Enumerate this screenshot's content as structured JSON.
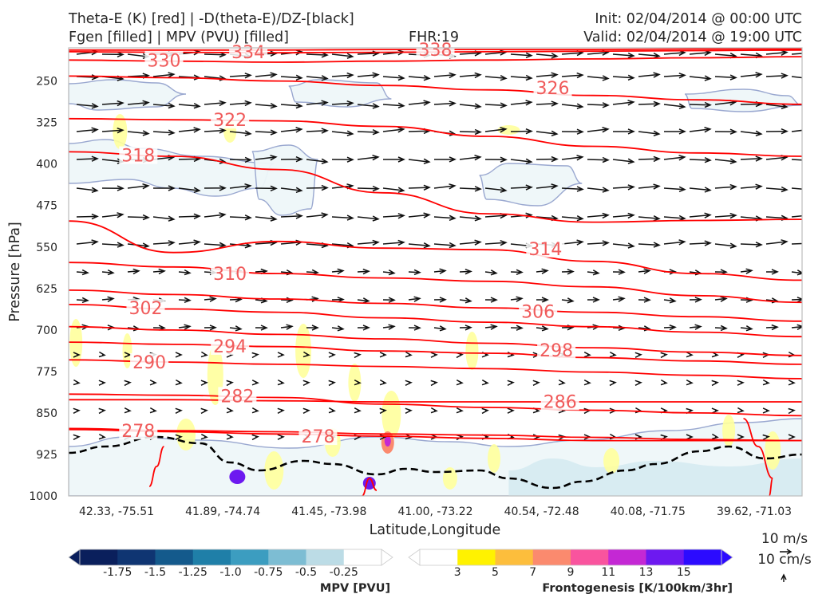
{
  "header": {
    "title_line1": "Theta-E (K) [red] | -D(theta-E)/DZ-[black]",
    "title_line2": "Fgen [filled] | MPV (PVU) [filled]",
    "fhr": "FHR:19",
    "init": "Init: 02/04/2014 @ 00:00 UTC",
    "valid": "Valid: 02/04/2014 @ 19:00 UTC"
  },
  "chart_data": {
    "type": "contour",
    "xlabel": "Latitude,Longitude",
    "ylabel": "Pressure [hPa]",
    "x_ticks": [
      "42.33, -75.51",
      "41.89, -74.74",
      "41.45, -73.98",
      "41.00, -73.22",
      "40.54, -72.48",
      "40.08, -71.75",
      "39.62, -71.03"
    ],
    "y_ticks": [
      250,
      325,
      400,
      475,
      550,
      625,
      700,
      775,
      850,
      925,
      1000
    ],
    "ylim": [
      1000,
      190
    ],
    "colors": {
      "theta_e": "#ff0000",
      "mpv_outline": "#9aa8d0",
      "wind_vectors": "#111111",
      "stability": "#000000"
    },
    "theta_e_contours": [
      {
        "label": "330",
        "p": [
          212,
          214,
          216,
          214,
          212,
          210,
          208,
          206
        ],
        "label_pos": [
          0.13,
          212
        ]
      },
      {
        "label": "334",
        "p": [
          197,
          198,
          199,
          198,
          197,
          196,
          195,
          194
        ],
        "label_pos": [
          0.245,
          197
        ]
      },
      {
        "label": "338",
        "p": [
          194,
          194,
          194,
          193,
          193,
          193,
          192,
          192
        ],
        "label_pos": [
          0.5,
          193
        ]
      },
      {
        "label": "326",
        "p": [
          241,
          244,
          250,
          258,
          266,
          276,
          284,
          292
        ],
        "label_pos": [
          0.66,
          262
        ]
      },
      {
        "label": "322",
        "p": [
          318,
          320,
          322,
          332,
          350,
          368,
          380,
          386
        ],
        "label_pos": [
          0.22,
          320
        ]
      },
      {
        "label": "318",
        "p": [
          378,
          386,
          410,
          452,
          490,
          505,
          502,
          500
        ],
        "label_pos": [
          0.095,
          384
        ]
      },
      {
        "label": "314",
        "p": [
          503,
          560,
          540,
          552,
          555,
          576,
          598,
          610
        ],
        "label_pos": [
          0.65,
          553
        ]
      },
      {
        "label": "310",
        "p": [
          578,
          586,
          598,
          606,
          612,
          622,
          638,
          650
        ],
        "label_pos": [
          0.22,
          598
        ]
      },
      {
        "label": "302",
        "p": [
          654,
          662,
          668,
          678,
          686,
          694,
          704,
          712
        ],
        "label_pos": [
          0.105,
          660
        ]
      },
      {
        "label": "306",
        "p": [
          628,
          636,
          644,
          652,
          660,
          668,
          676,
          684
        ],
        "label_pos": [
          0.64,
          666
        ]
      },
      {
        "label": "294",
        "p": [
          722,
          726,
          730,
          738,
          742,
          750,
          756,
          762
        ],
        "label_pos": [
          0.22,
          729
        ]
      },
      {
        "label": "298",
        "p": [
          694,
          700,
          708,
          716,
          724,
          732,
          740,
          746
        ],
        "label_pos": [
          0.665,
          736
        ]
      },
      {
        "label": "290",
        "p": [
          754,
          758,
          762,
          766,
          770,
          776,
          782,
          788
        ],
        "label_pos": [
          0.11,
          758
        ]
      },
      {
        "label": "286",
        "p": [
          826,
          826,
          828,
          830,
          830,
          830,
          830,
          830
        ],
        "label_pos": [
          0.67,
          829
        ]
      },
      {
        "label": "282",
        "p": [
          816,
          818,
          822,
          834,
          840,
          845,
          850,
          855
        ],
        "label_pos": [
          0.23,
          819
        ]
      },
      {
        "label": "278",
        "p": [
          880,
          884,
          888,
          892,
          896,
          900,
          900,
          900
        ],
        "label_pos": [
          0.34,
          892
        ]
      },
      {
        "label": "278",
        "p": [
          878,
          882,
          884,
          888,
          890,
          894,
          898,
          900
        ],
        "label_pos": [
          0.095,
          882
        ]
      }
    ],
    "mpv_colorbar": {
      "label": "MPV [PVU]",
      "ticks": [
        "-1.75",
        "-1.5",
        "-1.25",
        "-1.0",
        "-0.75",
        "-0.5",
        "-0.25"
      ],
      "colors": [
        "#0a1f5c",
        "#0f3572",
        "#145a8c",
        "#1f7fa8",
        "#3c9dc0",
        "#7dbdd3",
        "#bcdce6",
        "#ffffff"
      ]
    },
    "fgen_colorbar": {
      "label": "Frontogenesis [K/100km/3hr]",
      "ticks": [
        "3",
        "5",
        "7",
        "9",
        "11",
        "13",
        "15"
      ],
      "colors": [
        "#ffffff",
        "#fff200",
        "#fdbe3c",
        "#fb8a6e",
        "#f9549e",
        "#c428d4",
        "#6d19f0",
        "#2c0bff"
      ]
    },
    "wind_key": {
      "horizontal": "10 m/s",
      "vertical": "10 cm/s"
    }
  }
}
